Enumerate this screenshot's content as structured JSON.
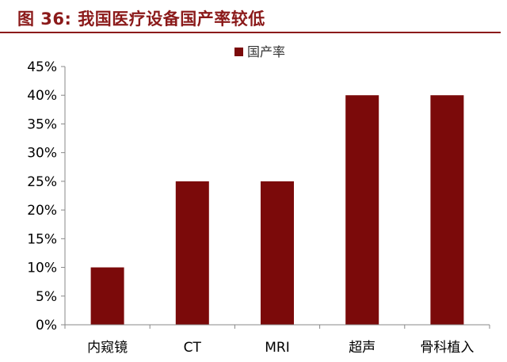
{
  "figure": {
    "title": "图 36:  我国医疗设备国产率较低"
  },
  "colors": {
    "accent": "#8b1a1a",
    "bar": "#7b0a0a"
  },
  "chart_data": {
    "type": "bar",
    "categories": [
      "内窥镜",
      "CT",
      "MRI",
      "超声",
      "骨科植入"
    ],
    "series": [
      {
        "name": "国产率",
        "values": [
          10,
          25,
          25,
          40,
          40
        ]
      }
    ],
    "ylim": [
      0,
      45
    ],
    "yticks": [
      0,
      5,
      10,
      15,
      20,
      25,
      30,
      35,
      40,
      45
    ],
    "ytick_labels": [
      "0%",
      "5%",
      "10%",
      "15%",
      "20%",
      "25%",
      "30%",
      "35%",
      "40%",
      "45%"
    ],
    "legend_position": "top-center",
    "grid": false
  }
}
